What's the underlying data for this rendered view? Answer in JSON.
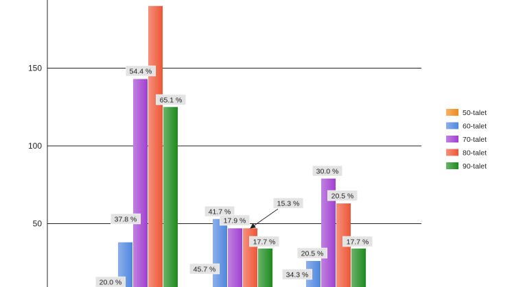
{
  "chart_data": {
    "type": "bar",
    "categories": [
      "",
      "",
      ""
    ],
    "y_ticks": [
      50,
      100,
      150
    ],
    "ylim": [
      0,
      185
    ],
    "grid": true,
    "legend_position": "right",
    "series": [
      {
        "name": "50-talet",
        "color": "#f08a1c",
        "values": [
          0,
          6,
          2
        ],
        "labels": [
          "",
          "45.7 %",
          "34.3 %"
        ]
      },
      {
        "name": "60-talet",
        "color": "#4f86de",
        "values": [
          38,
          53,
          26
        ],
        "labels": [
          "20.0 %",
          "41.7 %",
          "20.5 %"
        ]
      },
      {
        "name": "70-talet",
        "color": "#a03fd0",
        "values": [
          143,
          47,
          79
        ],
        "labels": [
          "37.8 %",
          "17.9 %",
          "30.0 %"
        ]
      },
      {
        "name": "80-talet",
        "color": "#ee5535",
        "values": [
          190,
          47,
          63
        ],
        "labels": [
          "54.4 %",
          "15.3 %",
          "20.5 %"
        ]
      },
      {
        "name": "90-talet",
        "color": "#1c8a1c",
        "values": [
          125,
          34,
          34
        ],
        "labels": [
          "65.1 %",
          "17.7 %",
          "17.7 %"
        ]
      }
    ]
  }
}
